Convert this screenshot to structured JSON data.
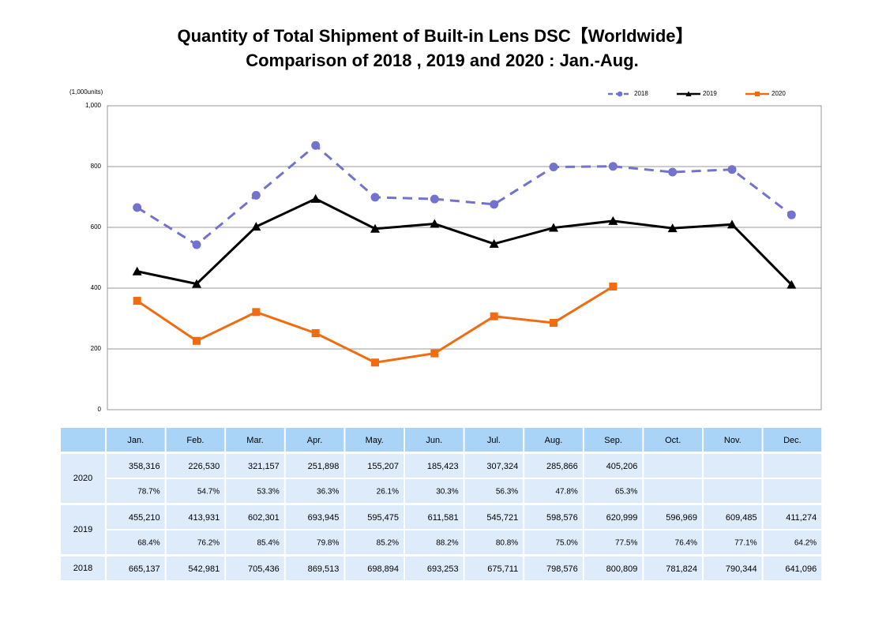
{
  "chart_data": {
    "type": "line",
    "title": "Quantity of Total Shipment of Built-in Lens DSC【Worldwide】",
    "subtitle": "Comparison of 2018 , 2019 and 2020 : Jan.-Aug.",
    "y_label": "(1,000units)",
    "categories": [
      "Jan.",
      "Feb.",
      "Mar.",
      "Apr.",
      "May.",
      "Jun.",
      "Jul.",
      "Aug.",
      "Sep.",
      "Oct.",
      "Nov.",
      "Dec."
    ],
    "series": [
      {
        "name": "2018",
        "color": "#7373cf",
        "dash": true,
        "marker": "circle",
        "values": [
          665.137,
          542.981,
          705.436,
          869.513,
          698.894,
          693.253,
          675.711,
          798.576,
          800.809,
          781.824,
          790.344,
          641.096
        ]
      },
      {
        "name": "2019",
        "color": "#000000",
        "dash": false,
        "marker": "triangle",
        "values": [
          455.21,
          413.931,
          602.301,
          693.945,
          595.475,
          611.581,
          545.721,
          598.576,
          620.999,
          596.969,
          609.485,
          411.274
        ]
      },
      {
        "name": "2020",
        "color": "#f26b10",
        "dash": false,
        "marker": "square",
        "values": [
          358.316,
          226.53,
          321.157,
          251.898,
          155.207,
          185.423,
          307.324,
          285.866,
          405.206,
          null,
          null,
          null
        ]
      }
    ],
    "ylim": [
      0,
      1000
    ],
    "yticks": [
      0,
      200,
      400,
      600,
      800,
      {
        "value": 1000,
        "label": "1,000"
      }
    ],
    "grid": true,
    "legend": "top-right"
  },
  "table": {
    "groups": [
      {
        "name": "2020",
        "rows": [
          [
            "358,316",
            "226,530",
            "321,157",
            "251,898",
            "155,207",
            "185,423",
            "307,324",
            "285,866",
            "405,206"
          ],
          [
            "78.7%",
            "54.7%",
            "53.3%",
            "36.3%",
            "26.1%",
            "30.3%",
            "56.3%",
            "47.8%",
            "65.3%"
          ]
        ]
      },
      {
        "name": "2019",
        "rows": [
          [
            "455,210",
            "413,931",
            "602,301",
            "693,945",
            "595,475",
            "611,581",
            "545,721",
            "598,576",
            "620,999",
            "596,969",
            "609,485",
            "411,274"
          ],
          [
            "68.4%",
            "76.2%",
            "85.4%",
            "79.8%",
            "85.2%",
            "88.2%",
            "80.8%",
            "75.0%",
            "77.5%",
            "76.4%",
            "77.1%",
            "64.2%"
          ]
        ]
      },
      {
        "name": "2018",
        "rows": [
          [
            "665,137",
            "542,981",
            "705,436",
            "869,513",
            "698,894",
            "693,253",
            "675,711",
            "798,576",
            "800,809",
            "781,824",
            "790,344",
            "641,096"
          ]
        ]
      }
    ]
  }
}
